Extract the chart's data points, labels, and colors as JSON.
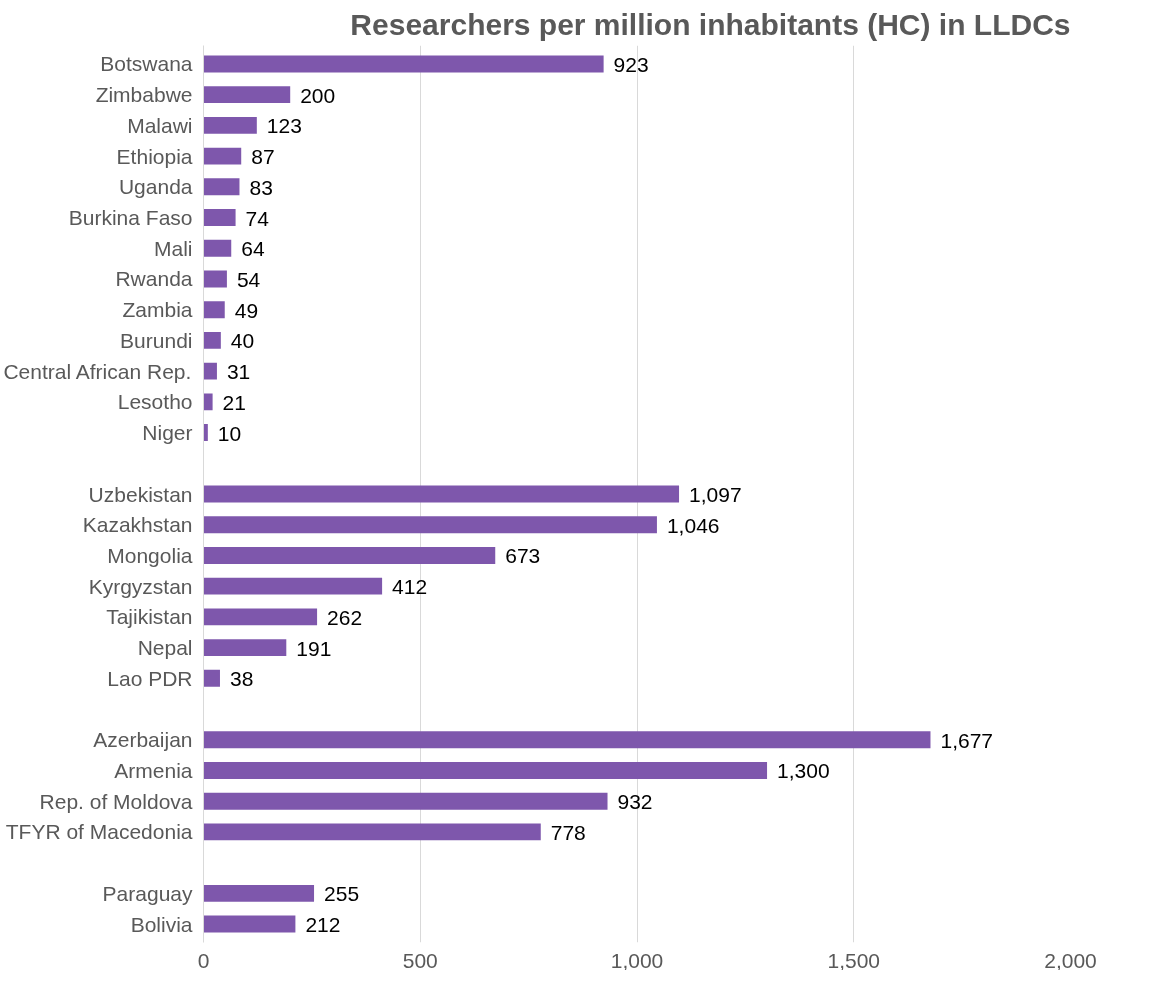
{
  "chart_data": {
    "type": "bar",
    "orientation": "horizontal",
    "title": "Researchers per million inhabitants (HC) in LLDCs",
    "categories": [
      "Botswana",
      "Zimbabwe",
      "Malawi",
      "Ethiopia",
      "Uganda",
      "Burkina Faso",
      "Mali",
      "Rwanda",
      "Zambia",
      "Burundi",
      "Central African Rep.",
      "Lesotho",
      "Niger",
      null,
      "Uzbekistan",
      "Kazakhstan",
      "Mongolia",
      "Kyrgyzstan",
      "Tajikistan",
      "Nepal",
      "Lao PDR",
      null,
      "Azerbaijan",
      "Armenia",
      "Rep. of Moldova",
      "TFYR of Macedonia",
      null,
      "Paraguay",
      "Bolivia"
    ],
    "values": [
      923,
      200,
      123,
      87,
      83,
      74,
      64,
      54,
      49,
      40,
      31,
      21,
      10,
      null,
      1097,
      1046,
      673,
      412,
      262,
      191,
      38,
      null,
      1677,
      1300,
      932,
      778,
      null,
      255,
      212
    ],
    "value_labels": [
      "923",
      "200",
      "123",
      "87",
      "83",
      "74",
      "64",
      "54",
      "49",
      "40",
      "31",
      "21",
      "10",
      null,
      "1,097",
      "1,046",
      "673",
      "412",
      "262",
      "191",
      "38",
      null,
      "1,677",
      "1,300",
      "932",
      "778",
      null,
      "255",
      "212"
    ],
    "color": "#7e57ac",
    "xlim": [
      0,
      2000
    ],
    "xticks": [
      0,
      {
        "value": 500,
        "label": "500"
      },
      {
        "value": 1000,
        "label": "1,000"
      },
      {
        "value": 1500,
        "label": "1,500"
      },
      {
        "value": 2000,
        "label": "2,000"
      }
    ],
    "grid": "x"
  }
}
